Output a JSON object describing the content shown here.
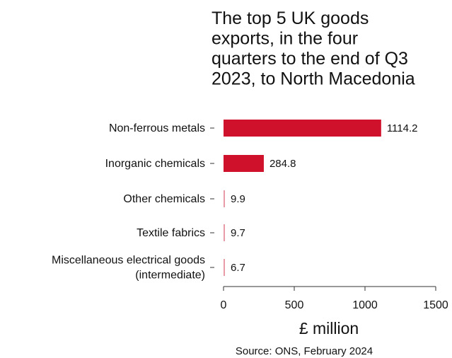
{
  "chart_data": {
    "type": "bar",
    "orientation": "horizontal",
    "title_lines": [
      "The top 5 UK goods",
      "exports, in the four",
      "quarters to the end of Q3",
      "2023, to North Macedonia"
    ],
    "categories": [
      [
        "Non-ferrous metals"
      ],
      [
        "Inorganic chemicals"
      ],
      [
        "Other chemicals"
      ],
      [
        "Textile fabrics"
      ],
      [
        "Miscellaneous electrical goods",
        "(intermediate)"
      ]
    ],
    "values": [
      1114.2,
      284.8,
      9.9,
      9.7,
      6.7
    ],
    "value_labels": [
      "1114.2",
      "284.8",
      "9.9",
      "9.7",
      "6.7"
    ],
    "xlabel": "£ million",
    "xlim": [
      0,
      1500
    ],
    "xticks": [
      0,
      500,
      1000,
      1500
    ],
    "bar_color": "#d0112b",
    "grid": false,
    "source": "Source: ONS, February 2024"
  }
}
